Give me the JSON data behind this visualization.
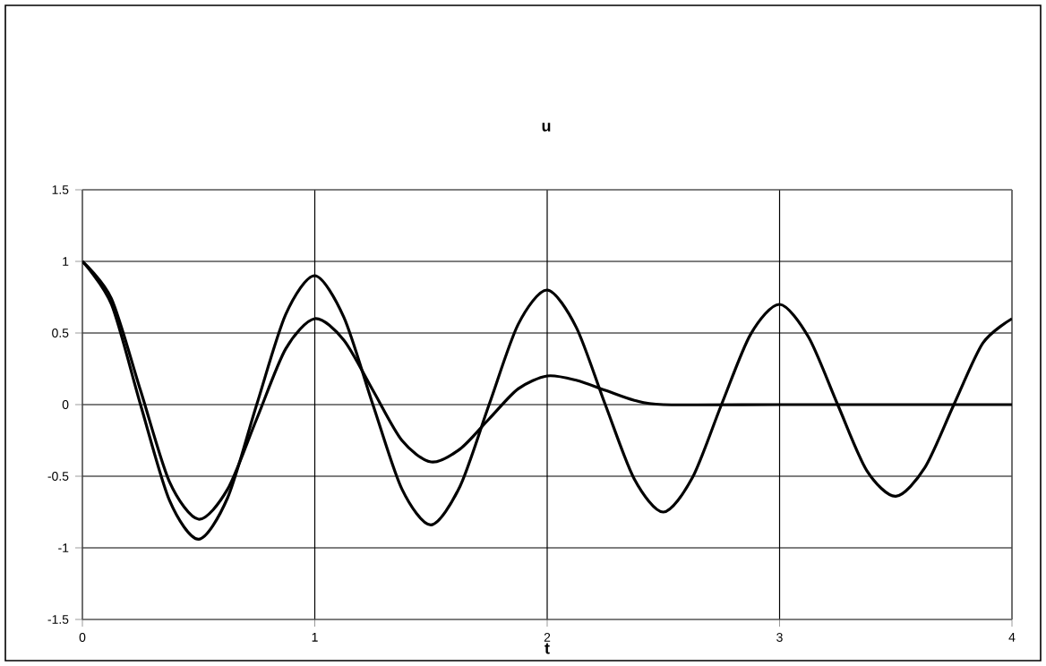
{
  "chart_data": {
    "type": "line",
    "title": "u",
    "xlabel": "t",
    "series": [
      {
        "color": "#000000",
        "x": [
          0,
          0.125,
          0.25,
          0.375,
          0.5,
          0.625,
          0.75,
          0.875,
          1,
          1.125,
          1.25,
          1.375,
          1.5,
          1.625,
          1.75,
          1.875,
          2,
          2.125,
          2.25,
          2.375,
          2.5,
          2.625,
          2.75,
          2.875,
          3,
          3.125,
          3.25,
          3.375,
          3.5,
          3.625,
          3.75,
          3.875,
          4
        ],
        "values": [
          1,
          0.7,
          0,
          -0.67,
          -0.94,
          -0.65,
          0,
          0.63,
          0.9,
          0.61,
          0,
          -0.59,
          -0.84,
          -0.57,
          0,
          0.56,
          0.8,
          0.54,
          0,
          -0.52,
          -0.75,
          -0.51,
          0,
          0.49,
          0.7,
          0.47,
          0,
          -0.46,
          -0.64,
          -0.44,
          0,
          0.43,
          0.6
        ]
      },
      {
        "color": "#000000",
        "x": [
          0,
          0.125,
          0.25,
          0.375,
          0.5,
          0.625,
          0.75,
          0.875,
          1,
          1.125,
          1.25,
          1.375,
          1.5,
          1.625,
          1.75,
          1.875,
          2,
          2.125,
          2.25,
          2.375,
          2.5,
          3,
          3.5,
          4
        ],
        "values": [
          1,
          0.74,
          0.1,
          -0.54,
          -0.8,
          -0.59,
          -0.1,
          0.39,
          0.6,
          0.45,
          0.1,
          -0.25,
          -0.4,
          -0.31,
          -0.1,
          0.11,
          0.2,
          0.17,
          0.1,
          0.03,
          0,
          0,
          0,
          0
        ]
      }
    ],
    "xlim": [
      0,
      4
    ],
    "ylim": [
      -1.5,
      1.5
    ],
    "xticks": [
      0,
      1,
      2,
      3,
      4
    ],
    "yticks": [
      -1.5,
      -1,
      -0.5,
      0,
      0.5,
      1,
      1.5
    ],
    "grid": true,
    "marker": "none",
    "line_style": "solid"
  }
}
